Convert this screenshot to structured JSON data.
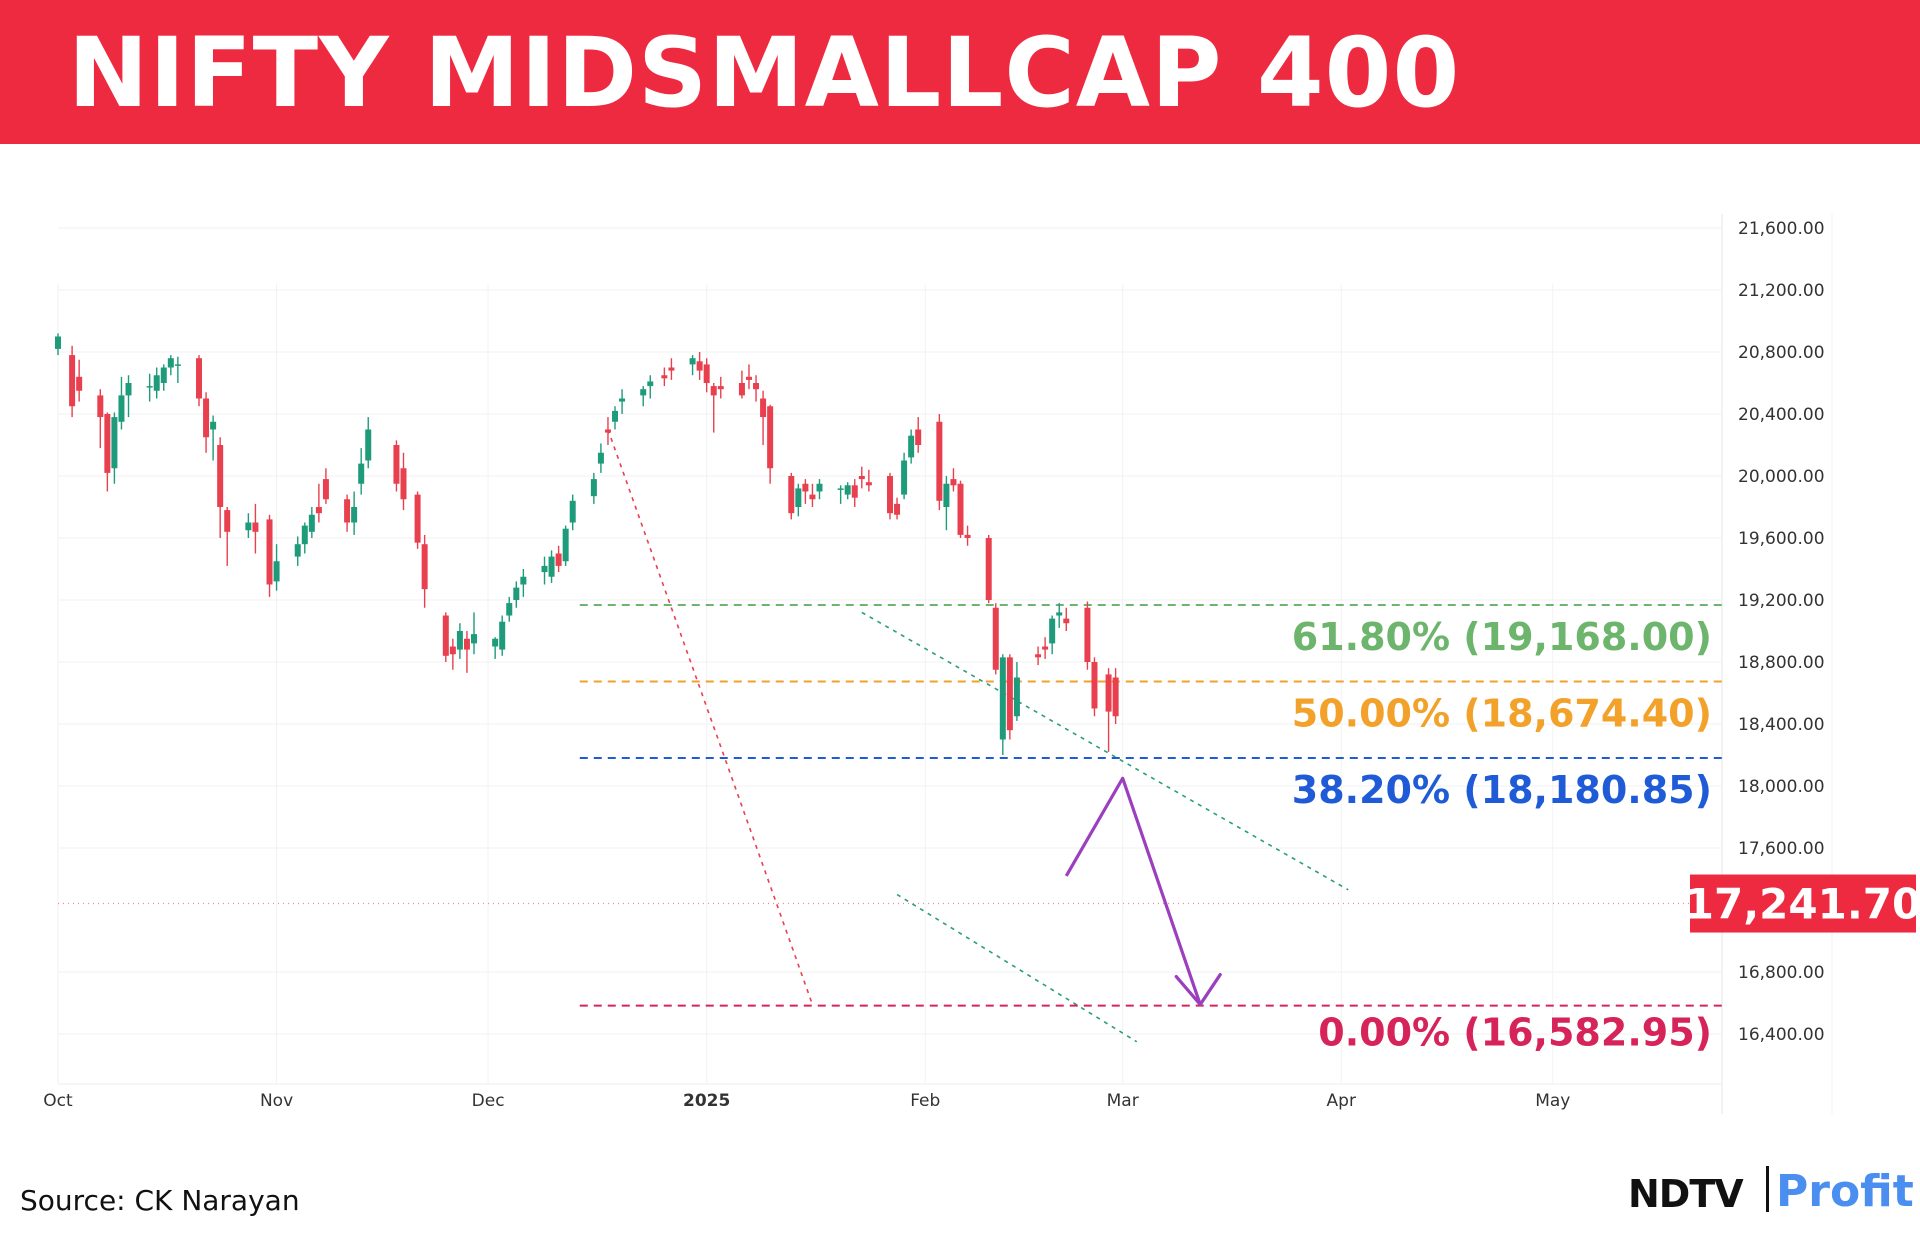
{
  "header": {
    "title": "NIFTY MIDSMALLCAP 400"
  },
  "footer": {
    "source": "Source: CK Narayan",
    "brand_left": "NDTV",
    "brand_right": "Profit"
  },
  "colors": {
    "banner": "#ee2a41",
    "up_candle": "#1e9b7a",
    "down_candle": "#e8404f",
    "fib_618": "#6db56d",
    "fib_50": "#f2a22b",
    "fib_382": "#1f5bd6",
    "fib_0": "#d6245a",
    "projection_arrow": "#9b3fbf",
    "channel": "#2a9d7b",
    "price_tag": "#ee2a41"
  },
  "chart_data": {
    "type": "candlestick",
    "title": "NIFTY MIDSMALLCAP 400",
    "ylim": [
      16200,
      21800
    ],
    "y_ticks": [
      21600,
      21200,
      20800,
      20400,
      20000,
      19600,
      19200,
      18800,
      18400,
      18000,
      17600,
      16800,
      16400
    ],
    "y_tick_labels": [
      "21,600.00",
      "21,200.00",
      "20,800.00",
      "20,400.00",
      "20,000.00",
      "19,600.00",
      "19,200.00",
      "18,800.00",
      "18,400.00",
      "18,000.00",
      "17,600.00",
      "16,800.00",
      "16,400.00"
    ],
    "x_range": [
      "2024-10-01",
      "2025-05-25"
    ],
    "x_ticks": [
      {
        "date": "2024-10-01",
        "label": "Oct"
      },
      {
        "date": "2024-11-01",
        "label": "Nov"
      },
      {
        "date": "2024-12-01",
        "label": "Dec"
      },
      {
        "date": "2025-01-01",
        "label": "2025"
      },
      {
        "date": "2025-02-01",
        "label": "Feb"
      },
      {
        "date": "2025-03-01",
        "label": "Mar"
      },
      {
        "date": "2025-04-01",
        "label": "Apr"
      },
      {
        "date": "2025-05-01",
        "label": "May"
      }
    ],
    "last_price": {
      "value": 17241.7,
      "label": "17,241.70"
    },
    "fib_levels": [
      {
        "level": 19168.0,
        "label": "61.80% (19,168.00)",
        "color": "#6db56d"
      },
      {
        "level": 18674.4,
        "label": "50.00% (18,674.40)",
        "color": "#f2a22b"
      },
      {
        "level": 18180.85,
        "label": "38.20% (18,180.85)",
        "color": "#1f5bd6"
      },
      {
        "level": 16582.95,
        "label": "0.00% (16,582.95)",
        "color": "#d6245a"
      }
    ],
    "fib_start": "2024-12-14",
    "fib_end": "2025-05-25",
    "trendline": {
      "from": [
        "2024-12-18",
        20300
      ],
      "to": [
        "2025-01-16",
        16590
      ]
    },
    "channel_upper": {
      "from": [
        "2025-01-23",
        19120
      ],
      "to": [
        "2025-04-02",
        17330
      ]
    },
    "channel_lower": {
      "from": [
        "2025-01-28",
        17300
      ],
      "to": [
        "2025-03-03",
        16350
      ]
    },
    "projection_path": [
      [
        "2025-02-21",
        17420
      ],
      [
        "2025-03-01",
        18050
      ],
      [
        "2025-03-12",
        16590
      ]
    ],
    "candles": [
      [
        "2024-10-01",
        20820,
        20920,
        20780,
        20900
      ],
      [
        "2024-10-03",
        20780,
        20840,
        20380,
        20450
      ],
      [
        "2024-10-04",
        20640,
        20750,
        20480,
        20550
      ],
      [
        "2024-10-07",
        20520,
        20560,
        20180,
        20380
      ],
      [
        "2024-10-08",
        20400,
        20410,
        19900,
        20020
      ],
      [
        "2024-10-09",
        20050,
        20410,
        19950,
        20380
      ],
      [
        "2024-10-10",
        20350,
        20640,
        20300,
        20520
      ],
      [
        "2024-10-11",
        20520,
        20650,
        20380,
        20600
      ],
      [
        "2024-10-14",
        20580,
        20660,
        20480,
        20580
      ],
      [
        "2024-10-15",
        20550,
        20700,
        20500,
        20650
      ],
      [
        "2024-10-16",
        20600,
        20720,
        20550,
        20700
      ],
      [
        "2024-10-17",
        20700,
        20780,
        20650,
        20760
      ],
      [
        "2024-10-18",
        20720,
        20770,
        20600,
        20720
      ],
      [
        "2024-10-21",
        20760,
        20780,
        20450,
        20500
      ],
      [
        "2024-10-22",
        20500,
        20540,
        20150,
        20250
      ],
      [
        "2024-10-23",
        20300,
        20390,
        20100,
        20350
      ],
      [
        "2024-10-24",
        20200,
        20250,
        19600,
        19800
      ],
      [
        "2024-10-25",
        19780,
        19800,
        19420,
        19640
      ],
      [
        "2024-10-28",
        19650,
        19760,
        19600,
        19700
      ],
      [
        "2024-10-29",
        19700,
        19820,
        19500,
        19640
      ],
      [
        "2024-10-31",
        19720,
        19750,
        19220,
        19300
      ],
      [
        "2024-11-01",
        19320,
        19560,
        19260,
        19450
      ],
      [
        "2024-11-04",
        19480,
        19610,
        19420,
        19560
      ],
      [
        "2024-11-05",
        19560,
        19700,
        19500,
        19680
      ],
      [
        "2024-11-06",
        19640,
        19800,
        19600,
        19750
      ],
      [
        "2024-11-07",
        19800,
        19950,
        19700,
        19760
      ],
      [
        "2024-11-08",
        19980,
        20050,
        19820,
        19850
      ],
      [
        "2024-11-11",
        19850,
        19880,
        19640,
        19700
      ],
      [
        "2024-11-12",
        19700,
        19900,
        19620,
        19800
      ],
      [
        "2024-11-13",
        19950,
        20180,
        19880,
        20080
      ],
      [
        "2024-11-14",
        20100,
        20380,
        20050,
        20300
      ],
      [
        "2024-11-18",
        20200,
        20230,
        19900,
        19950
      ],
      [
        "2024-11-19",
        20050,
        20150,
        19780,
        19850
      ],
      [
        "2024-11-21",
        19880,
        19900,
        19530,
        19570
      ],
      [
        "2024-11-22",
        19560,
        19620,
        19150,
        19270
      ],
      [
        "2024-11-25",
        19100,
        19120,
        18800,
        18840
      ],
      [
        "2024-11-26",
        18900,
        18950,
        18750,
        18850
      ],
      [
        "2024-11-27",
        18880,
        19050,
        18820,
        19000
      ],
      [
        "2024-11-28",
        18950,
        19000,
        18730,
        18880
      ],
      [
        "2024-11-29",
        18920,
        19120,
        18850,
        18980
      ],
      [
        "2024-12-02",
        18900,
        18960,
        18820,
        18950
      ],
      [
        "2024-12-03",
        18880,
        19100,
        18840,
        19060
      ],
      [
        "2024-12-04",
        19100,
        19220,
        19060,
        19180
      ],
      [
        "2024-12-05",
        19200,
        19320,
        19150,
        19280
      ],
      [
        "2024-12-06",
        19300,
        19400,
        19220,
        19350
      ],
      [
        "2024-12-09",
        19380,
        19480,
        19300,
        19420
      ],
      [
        "2024-12-10",
        19350,
        19520,
        19310,
        19480
      ],
      [
        "2024-12-11",
        19500,
        19550,
        19380,
        19420
      ],
      [
        "2024-12-12",
        19450,
        19680,
        19420,
        19660
      ],
      [
        "2024-12-13",
        19700,
        19880,
        19650,
        19840
      ],
      [
        "2024-12-16",
        19870,
        20020,
        19820,
        19980
      ],
      [
        "2024-12-17",
        20080,
        20210,
        20020,
        20150
      ],
      [
        "2024-12-18",
        20300,
        20380,
        20200,
        20280
      ],
      [
        "2024-12-19",
        20350,
        20450,
        20300,
        20420
      ],
      [
        "2024-12-20",
        20480,
        20560,
        20400,
        20500
      ],
      [
        "2024-12-23",
        20520,
        20580,
        20450,
        20560
      ],
      [
        "2024-12-24",
        20580,
        20650,
        20500,
        20610
      ],
      [
        "2024-12-26",
        20650,
        20700,
        20580,
        20630
      ],
      [
        "2024-12-27",
        20700,
        20760,
        20620,
        20680
      ],
      [
        "2024-12-30",
        20720,
        20780,
        20650,
        20760
      ],
      [
        "2024-12-31",
        20740,
        20800,
        20620,
        20680
      ],
      [
        "2025-01-01",
        20720,
        20760,
        20540,
        20600
      ],
      [
        "2025-01-02",
        20580,
        20600,
        20280,
        20520
      ],
      [
        "2025-01-03",
        20580,
        20640,
        20500,
        20560
      ],
      [
        "2025-01-06",
        20600,
        20680,
        20500,
        20520
      ],
      [
        "2025-01-07",
        20640,
        20720,
        20560,
        20620
      ],
      [
        "2025-01-08",
        20600,
        20650,
        20480,
        20560
      ],
      [
        "2025-01-09",
        20500,
        20550,
        20200,
        20380
      ],
      [
        "2025-01-10",
        20450,
        20460,
        19950,
        20050
      ],
      [
        "2025-01-13",
        20000,
        20020,
        19720,
        19760
      ],
      [
        "2025-01-14",
        19800,
        19950,
        19740,
        19920
      ],
      [
        "2025-01-15",
        19950,
        19980,
        19820,
        19900
      ],
      [
        "2025-01-16",
        19880,
        19950,
        19800,
        19850
      ],
      [
        "2025-01-17",
        19900,
        19980,
        19850,
        19950
      ],
      [
        "2025-01-20",
        19920,
        19940,
        19820,
        19920
      ],
      [
        "2025-01-21",
        19880,
        19960,
        19850,
        19940
      ],
      [
        "2025-01-22",
        19940,
        19980,
        19800,
        19860
      ],
      [
        "2025-01-23",
        20000,
        20060,
        19920,
        19980
      ],
      [
        "2025-01-24",
        19960,
        20040,
        19900,
        19940
      ],
      [
        "2025-01-27",
        20000,
        20020,
        19720,
        19760
      ],
      [
        "2025-01-28",
        19820,
        19860,
        19720,
        19750
      ],
      [
        "2025-01-29",
        19880,
        20150,
        19850,
        20100
      ],
      [
        "2025-01-30",
        20120,
        20300,
        20080,
        20260
      ],
      [
        "2025-01-31",
        20300,
        20380,
        20150,
        20200
      ],
      [
        "2025-02-03",
        20350,
        20400,
        19780,
        19840
      ],
      [
        "2025-02-04",
        19800,
        20000,
        19650,
        19950
      ],
      [
        "2025-02-05",
        19980,
        20050,
        19900,
        19940
      ],
      [
        "2025-02-06",
        19950,
        19970,
        19600,
        19620
      ],
      [
        "2025-02-07",
        19620,
        19680,
        19550,
        19600
      ],
      [
        "2025-02-10",
        19600,
        19620,
        19180,
        19200
      ],
      [
        "2025-02-11",
        19150,
        19180,
        18720,
        18750
      ],
      [
        "2025-02-12",
        18300,
        18850,
        18200,
        18830
      ],
      [
        "2025-02-13",
        18830,
        18850,
        18300,
        18360
      ],
      [
        "2025-02-14",
        18450,
        18800,
        18420,
        18700
      ],
      [
        "2025-02-17",
        18850,
        18900,
        18780,
        18830
      ],
      [
        "2025-02-18",
        18900,
        18960,
        18820,
        18880
      ],
      [
        "2025-02-19",
        18920,
        19100,
        18850,
        19080
      ],
      [
        "2025-02-20",
        19100,
        19180,
        19020,
        19120
      ],
      [
        "2025-02-21",
        19080,
        19150,
        19000,
        19050
      ],
      [
        "2025-02-24",
        19150,
        19190,
        18750,
        18800
      ],
      [
        "2025-02-25",
        18800,
        18830,
        18450,
        18500
      ],
      [
        "2025-02-27",
        18720,
        18760,
        18220,
        18480
      ],
      [
        "2025-02-28",
        18700,
        18760,
        18400,
        18450
      ]
    ]
  }
}
